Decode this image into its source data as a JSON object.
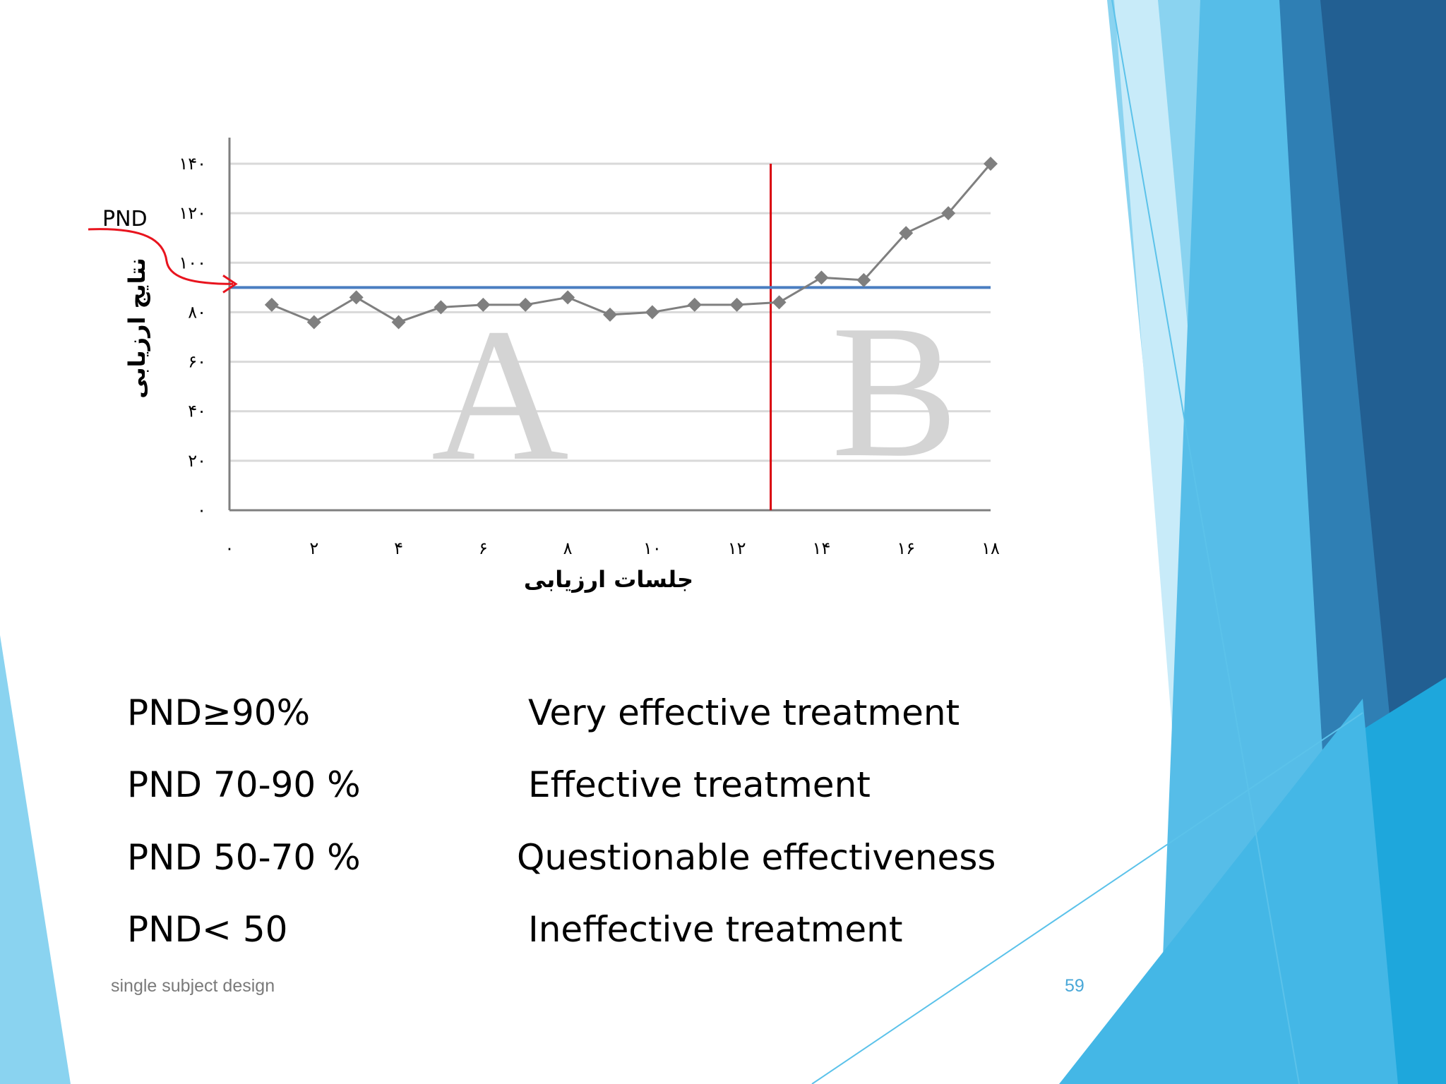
{
  "theme": {
    "accent_light": "#8ad3f0",
    "accent_mid": "#3fb1e3",
    "accent_dark": "#2a6f9e",
    "accent_deep": "#1f5a8c"
  },
  "chart_data": {
    "type": "line",
    "title": "",
    "xlabel": "جلسات ارزیابی",
    "ylabel": "نتایج ارزیابی",
    "x_ticks": [
      "۰",
      "۲",
      "۴",
      "۶",
      "۸",
      "۱۰",
      "۱۲",
      "۱۴",
      "۱۶",
      "۱۸"
    ],
    "x_tick_values": [
      0,
      2,
      4,
      6,
      8,
      10,
      12,
      14,
      16,
      18
    ],
    "y_ticks": [
      "۰",
      "۲۰",
      "۴۰",
      "۶۰",
      "۸۰",
      "۱۰۰",
      "۱۲۰",
      "۱۴۰"
    ],
    "y_tick_values": [
      0,
      20,
      40,
      60,
      80,
      100,
      120,
      140
    ],
    "xlim": [
      0,
      18
    ],
    "ylim": [
      0,
      140
    ],
    "grid": true,
    "series": [
      {
        "color": "#7f7f7f",
        "x": [
          1,
          2,
          3,
          4,
          5,
          6,
          7,
          8,
          9,
          10,
          11,
          12,
          13,
          14,
          15,
          16,
          17,
          18
        ],
        "y": [
          83,
          76,
          86,
          76,
          82,
          83,
          83,
          86,
          79,
          80,
          83,
          83,
          84,
          94,
          93,
          112,
          120,
          140
        ]
      }
    ],
    "phase_line": {
      "x": 12.8,
      "color": "#d9000d"
    },
    "pnd_line": {
      "y": 90,
      "color": "#4a7ec1"
    },
    "phase_labels": [
      "A",
      "B"
    ],
    "pnd_label": "PND"
  },
  "criteria": [
    {
      "range": "PND≥90%",
      "meaning": "Very effective treatment"
    },
    {
      "range": "PND 70-90 %",
      "meaning": "Effective treatment"
    },
    {
      "range": "PND 50-70 %",
      "meaning": "Questionable effectiveness"
    },
    {
      "range": "PND< 50",
      "meaning": "Ineffective treatment"
    }
  ],
  "footer": {
    "text": "single subject design",
    "page_number": "59"
  }
}
